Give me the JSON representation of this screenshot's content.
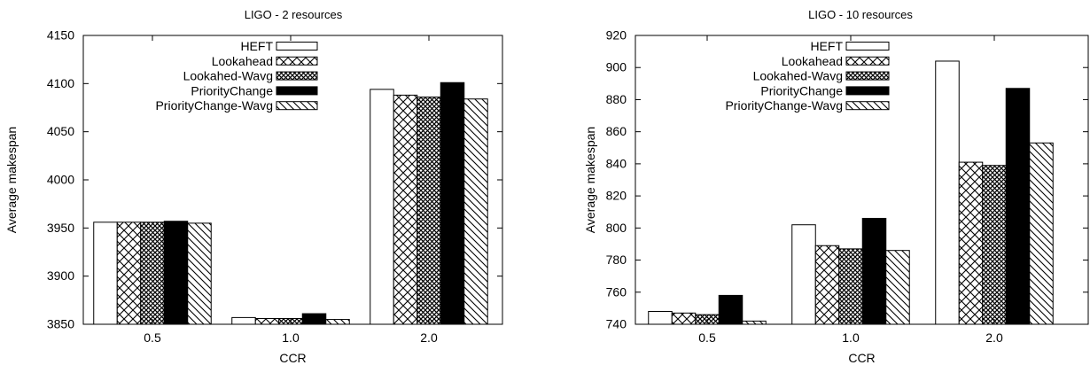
{
  "chart_data": [
    {
      "type": "bar",
      "title": "LIGO - 2 resources",
      "xlabel": "CCR",
      "ylabel": "Average makespan",
      "categories": [
        "0.5",
        "1.0",
        "2.0"
      ],
      "ylim": [
        3850,
        4150
      ],
      "yticks": [
        "3850",
        "3900",
        "3950",
        "4000",
        "4050",
        "4100",
        "4150"
      ],
      "legend_position": "top-left",
      "series": [
        {
          "name": "HEFT",
          "pattern": "white",
          "values": [
            3956,
            3857,
            4094
          ]
        },
        {
          "name": "Lookahead",
          "pattern": "crosshatch",
          "values": [
            3956,
            3856,
            4088
          ]
        },
        {
          "name": "Lookahed-Wavg",
          "pattern": "dense-crosshatch",
          "values": [
            3956,
            3856,
            4086
          ]
        },
        {
          "name": "PriorityChange",
          "pattern": "black",
          "values": [
            3957,
            3861,
            4101
          ]
        },
        {
          "name": "PriorityChange-Wavg",
          "pattern": "diagonal",
          "values": [
            3955,
            3855,
            4084
          ]
        }
      ]
    },
    {
      "type": "bar",
      "title": "LIGO - 10 resources",
      "xlabel": "CCR",
      "ylabel": "Average makespan",
      "categories": [
        "0.5",
        "1.0",
        "2.0"
      ],
      "ylim": [
        740,
        920
      ],
      "yticks": [
        "740",
        "760",
        "780",
        "800",
        "820",
        "840",
        "860",
        "880",
        "900",
        "920"
      ],
      "legend_position": "top-left",
      "series": [
        {
          "name": "HEFT",
          "pattern": "white",
          "values": [
            748,
            802,
            904
          ]
        },
        {
          "name": "Lookahead",
          "pattern": "crosshatch",
          "values": [
            747,
            789,
            841
          ]
        },
        {
          "name": "Lookahed-Wavg",
          "pattern": "dense-crosshatch",
          "values": [
            746,
            787,
            839
          ]
        },
        {
          "name": "PriorityChange",
          "pattern": "black",
          "values": [
            758,
            806,
            887
          ]
        },
        {
          "name": "PriorityChange-Wavg",
          "pattern": "diagonal",
          "values": [
            742,
            786,
            853
          ]
        }
      ]
    }
  ]
}
